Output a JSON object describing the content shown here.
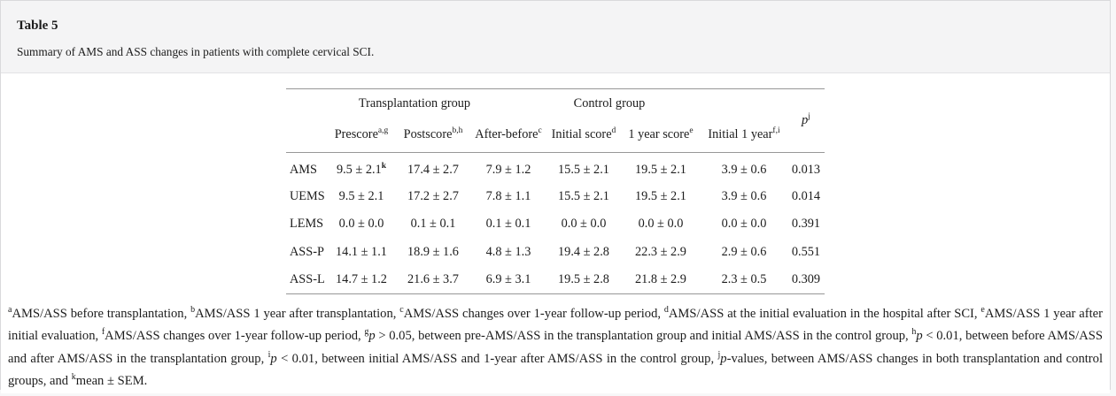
{
  "header": {
    "table_label": "Table 5",
    "caption": "Summary of AMS and ASS changes in patients with complete cervical SCI."
  },
  "colors": {
    "rule": "#979797",
    "caption_strip_bg": "#f4f4f5",
    "panel_border": "#d9d9db",
    "text": "#1c1c1c"
  },
  "table": {
    "groups": [
      "Transplantation group",
      "Control group"
    ],
    "p_column": {
      "label": "p",
      "sup": "j"
    },
    "columns": [
      {
        "key": "prescore",
        "label": "Prescore",
        "sup": "a,g"
      },
      {
        "key": "postscore",
        "label": "Postscore",
        "sup": "b,h"
      },
      {
        "key": "after-before",
        "label": "After-before",
        "sup": "c"
      },
      {
        "key": "initial-score",
        "label": "Initial score",
        "sup": "d"
      },
      {
        "key": "one-year-score",
        "label": "1 year score",
        "sup": "e"
      },
      {
        "key": "initial-1-year",
        "label": "Initial 1 year",
        "sup": "f,i"
      }
    ],
    "rows": [
      {
        "label": "AMS",
        "values": [
          "9.5 ± 2.1",
          "17.4 ± 2.7",
          "7.9 ± 1.2",
          "15.5 ± 2.1",
          "19.5 ± 2.1",
          "3.9 ± 0.6",
          "0.013"
        ],
        "value_sups": [
          "k",
          "",
          "",
          "",
          "",
          "",
          ""
        ]
      },
      {
        "label": "UEMS",
        "values": [
          "9.5 ± 2.1",
          "17.2 ± 2.7",
          "7.8 ± 1.1",
          "15.5 ± 2.1",
          "19.5 ± 2.1",
          "3.9 ± 0.6",
          "0.014"
        ]
      },
      {
        "label": "LEMS",
        "values": [
          "0.0 ± 0.0",
          "0.1 ± 0.1",
          "0.1 ± 0.1",
          "0.0 ± 0.0",
          "0.0 ± 0.0",
          "0.0 ± 0.0",
          "0.391"
        ]
      },
      {
        "label": "ASS-P",
        "values": [
          "14.1 ± 1.1",
          "18.9 ± 1.6",
          "4.8 ± 1.3",
          "19.4 ± 2.8",
          "22.3 ± 2.9",
          "2.9 ± 0.6",
          "0.551"
        ]
      },
      {
        "label": "ASS-L",
        "values": [
          "14.7 ± 1.2",
          "21.6 ± 3.7",
          "6.9 ± 3.1",
          "19.5 ± 2.8",
          "21.8 ± 2.9",
          "2.3 ± 0.5",
          "0.309"
        ]
      }
    ]
  },
  "footnotes": {
    "segments": [
      {
        "sup": "a",
        "text": "AMS/ASS before transplantation, "
      },
      {
        "sup": "b",
        "text": "AMS/ASS 1 year after transplantation, "
      },
      {
        "sup": "c",
        "text": "AMS/ASS changes over 1-year follow-up period, "
      },
      {
        "sup": "d",
        "text": "AMS/ASS at the initial evaluation in the hospital after SCI, "
      },
      {
        "sup": "e",
        "text": "AMS/ASS 1 year after initial evaluation, "
      },
      {
        "sup": "f",
        "text": "AMS/ASS changes over 1-year follow-up period, "
      },
      {
        "sup": "g",
        "italic": "p",
        "text": " > 0.05, between pre-AMS/ASS in the transplantation group and initial AMS/ASS in the control group, "
      },
      {
        "sup": "h",
        "italic": "p",
        "text": " < 0.01, between before AMS/ASS and after AMS/ASS in the transplantation group, "
      },
      {
        "sup": "i",
        "italic": "p",
        "text": " < 0.01, between initial AMS/ASS and 1-year after AMS/ASS in the control group, "
      },
      {
        "sup": "j",
        "italic": "p",
        "text": "-values, between AMS/ASS changes in both transplantation and control groups, and "
      },
      {
        "sup": "k",
        "text": "mean ± SEM."
      }
    ]
  }
}
